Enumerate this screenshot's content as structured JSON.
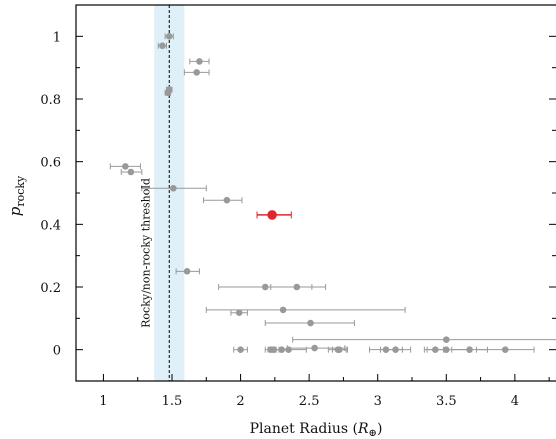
{
  "chart_data": {
    "type": "scatter",
    "xlabel": "Planet Radius",
    "xlabel_symbol": "R",
    "xlabel_subscript": "⊕",
    "ylabel": "p",
    "ylabel_subscript": "rocky",
    "xlim": [
      0.8,
      4.3
    ],
    "ylim": [
      -0.1,
      1.1
    ],
    "x_ticks": [
      1,
      1.5,
      2,
      2.5,
      3,
      3.5,
      4
    ],
    "x_tick_labels": [
      "1",
      "1.5",
      "2",
      "2.5",
      "3",
      "3.5",
      "4"
    ],
    "y_ticks": [
      0,
      0.2,
      0.4,
      0.6,
      0.8,
      1
    ],
    "y_tick_labels": [
      "0",
      "0.2",
      "0.4",
      "0.6",
      "0.8",
      "1"
    ],
    "grid": false,
    "threshold": {
      "x": 1.48,
      "band": [
        1.37,
        1.59
      ],
      "label": "Rocky/non-rocky threshold"
    },
    "colors": {
      "points": "#999999",
      "highlight": "#e0262b",
      "band": "#dff0f8"
    },
    "points": [
      {
        "x": 1.48,
        "y": 1.0,
        "xerr": [
          0.03,
          0.03
        ]
      },
      {
        "x": 1.43,
        "y": 0.97,
        "xerr": [
          0.03,
          0.03
        ]
      },
      {
        "x": 1.7,
        "y": 0.92,
        "xerr": [
          0.07,
          0.07
        ]
      },
      {
        "x": 1.68,
        "y": 0.885,
        "xerr": [
          0.09,
          0.09
        ]
      },
      {
        "x": 1.48,
        "y": 0.83,
        "xerr": [
          0.02,
          0.02
        ]
      },
      {
        "x": 1.47,
        "y": 0.82,
        "xerr": [
          0.02,
          0.02
        ]
      },
      {
        "x": 1.16,
        "y": 0.585,
        "xerr": [
          0.11,
          0.11
        ]
      },
      {
        "x": 1.2,
        "y": 0.567,
        "xerr": [
          0.07,
          0.08
        ]
      },
      {
        "x": 1.51,
        "y": 0.515,
        "xerr": [
          0.23,
          0.24
        ]
      },
      {
        "x": 1.9,
        "y": 0.477,
        "xerr": [
          0.17,
          0.11
        ]
      },
      {
        "x": 2.23,
        "y": 0.43,
        "xerr": [
          0.11,
          0.14
        ],
        "highlight": true
      },
      {
        "x": 1.61,
        "y": 0.25,
        "xerr": [
          0.08,
          0.09
        ]
      },
      {
        "x": 2.18,
        "y": 0.2,
        "xerr": [
          0.34,
          0.34
        ]
      },
      {
        "x": 2.41,
        "y": 0.2,
        "xerr": [
          0.19,
          0.21
        ]
      },
      {
        "x": 2.31,
        "y": 0.127,
        "xerr": [
          0.56,
          0.89
        ]
      },
      {
        "x": 1.99,
        "y": 0.118,
        "xerr": [
          0.06,
          0.06
        ]
      },
      {
        "x": 2.51,
        "y": 0.085,
        "xerr": [
          0.33,
          0.32
        ]
      },
      {
        "x": 3.5,
        "y": 0.032,
        "xerr": [
          1.12,
          1.0
        ]
      },
      {
        "x": 2.0,
        "y": 0.0,
        "xerr": [
          0.05,
          0.05
        ]
      },
      {
        "x": 2.22,
        "y": 0.0,
        "xerr": [
          0.04,
          0.04
        ]
      },
      {
        "x": 2.24,
        "y": 0.0,
        "xerr": [
          0.04,
          0.04
        ]
      },
      {
        "x": 2.3,
        "y": 0.0,
        "xerr": [
          0.05,
          0.05
        ]
      },
      {
        "x": 2.35,
        "y": 0.0,
        "xerr": [
          0.1,
          0.13
        ]
      },
      {
        "x": 2.54,
        "y": 0.005,
        "xerr": [
          0.2,
          0.22
        ]
      },
      {
        "x": 2.71,
        "y": 0.0,
        "xerr": [
          0.07,
          0.07
        ]
      },
      {
        "x": 2.72,
        "y": 0.0,
        "xerr": [
          0.05,
          0.05
        ]
      },
      {
        "x": 3.06,
        "y": 0.0,
        "xerr": [
          0.12,
          0.12
        ]
      },
      {
        "x": 3.13,
        "y": 0.0,
        "xerr": [
          0.11,
          0.11
        ]
      },
      {
        "x": 3.42,
        "y": 0.0,
        "xerr": [
          0.06,
          0.06
        ]
      },
      {
        "x": 3.5,
        "y": 0.0,
        "xerr": [
          0.16,
          0.16
        ]
      },
      {
        "x": 3.67,
        "y": 0.0,
        "xerr": [
          0.13,
          0.13
        ]
      },
      {
        "x": 3.93,
        "y": 0.0,
        "xerr": [
          0.21,
          0.21
        ]
      }
    ]
  }
}
